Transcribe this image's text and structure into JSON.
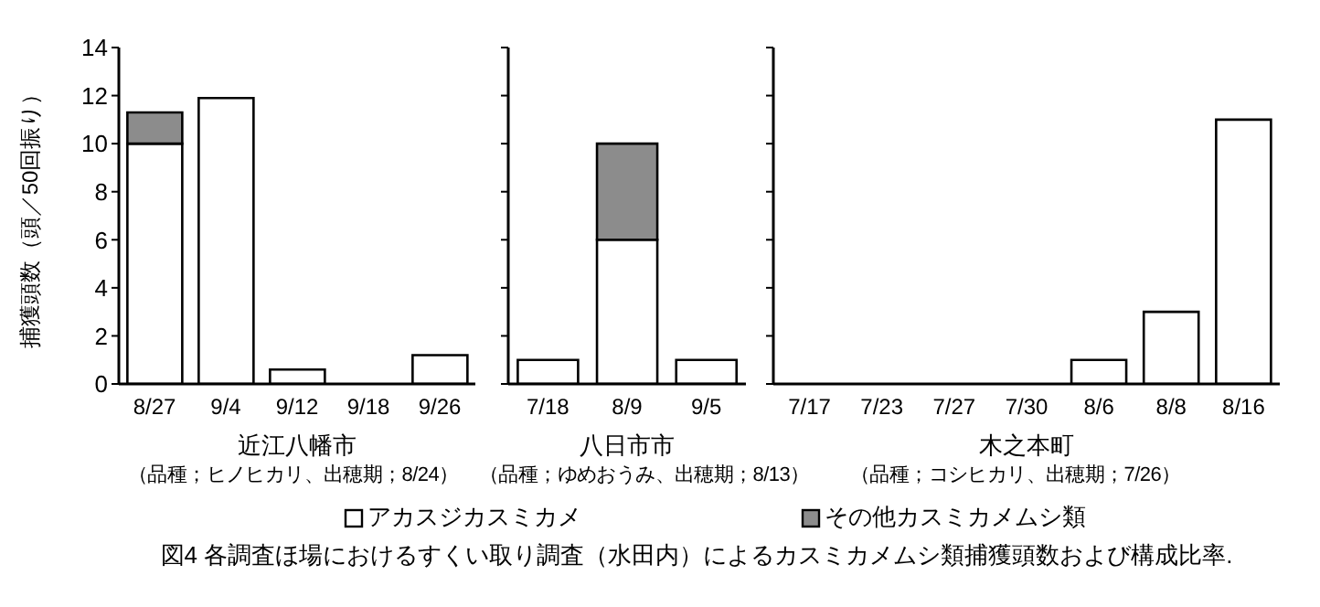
{
  "chart_data": [
    {
      "type": "bar",
      "stacked": true,
      "ylabel": "捕獲頭数（頭／50回振り）",
      "xlabel": "近江八幡市",
      "categories": [
        "8/27",
        "9/4",
        "9/12",
        "9/18",
        "9/26"
      ],
      "ylim": [
        0,
        14
      ],
      "yticks": [
        0,
        2,
        4,
        6,
        8,
        10,
        12,
        14
      ],
      "grid": false,
      "legend": "bottom",
      "series": [
        {
          "name": "アカスジカスミカメ",
          "color": "#ffffff",
          "values": [
            10,
            11.9,
            0.6,
            0,
            1.2
          ]
        },
        {
          "name": "その他カスミカメムシ類",
          "color": "#8c8c8c",
          "values": [
            1.3,
            0,
            0,
            0,
            0
          ]
        }
      ],
      "annotations": [
        "（品種；ヒノヒカリ、出穂期；8/24）",
        "図4 各調査ほ場におけるすくい取り調査（水田内）によるカスミカメムシ類捕獲頭数および構成比率."
      ]
    },
    {
      "type": "bar",
      "stacked": true,
      "xlabel": "八日市市",
      "categories": [
        "7/18",
        "8/9",
        "9/5"
      ],
      "ylim": [
        0,
        14
      ],
      "yticks": [
        0,
        2,
        4,
        6,
        8,
        10,
        12,
        14
      ],
      "tick_labels": "x",
      "grid": false,
      "series": [
        {
          "color": "#ffffff",
          "values": [
            1,
            6,
            1
          ]
        },
        {
          "color": "#8c8c8c",
          "values": [
            0,
            4,
            0
          ]
        }
      ],
      "annotations": [
        "（品種；ゆめおうみ、出穂期；8/13）"
      ]
    },
    {
      "type": "bar",
      "stacked": true,
      "xlabel": "木之本町",
      "categories": [
        "7/17",
        "7/23",
        "7/27",
        "7/30",
        "8/6",
        "8/8",
        "8/16"
      ],
      "ylim": [
        0,
        14
      ],
      "yticks": [
        0,
        2,
        4,
        6,
        8,
        10,
        12,
        14
      ],
      "tick_labels": "x",
      "grid": false,
      "series": [
        {
          "color": "#ffffff",
          "values": [
            0,
            0,
            0,
            0,
            1,
            3,
            11
          ]
        },
        {
          "color": "#8c8c8c",
          "values": [
            0,
            0,
            0,
            0,
            0,
            0,
            0
          ]
        }
      ],
      "annotations": [
        "（品種；コシヒカリ、出穂期；7/26）"
      ]
    }
  ]
}
